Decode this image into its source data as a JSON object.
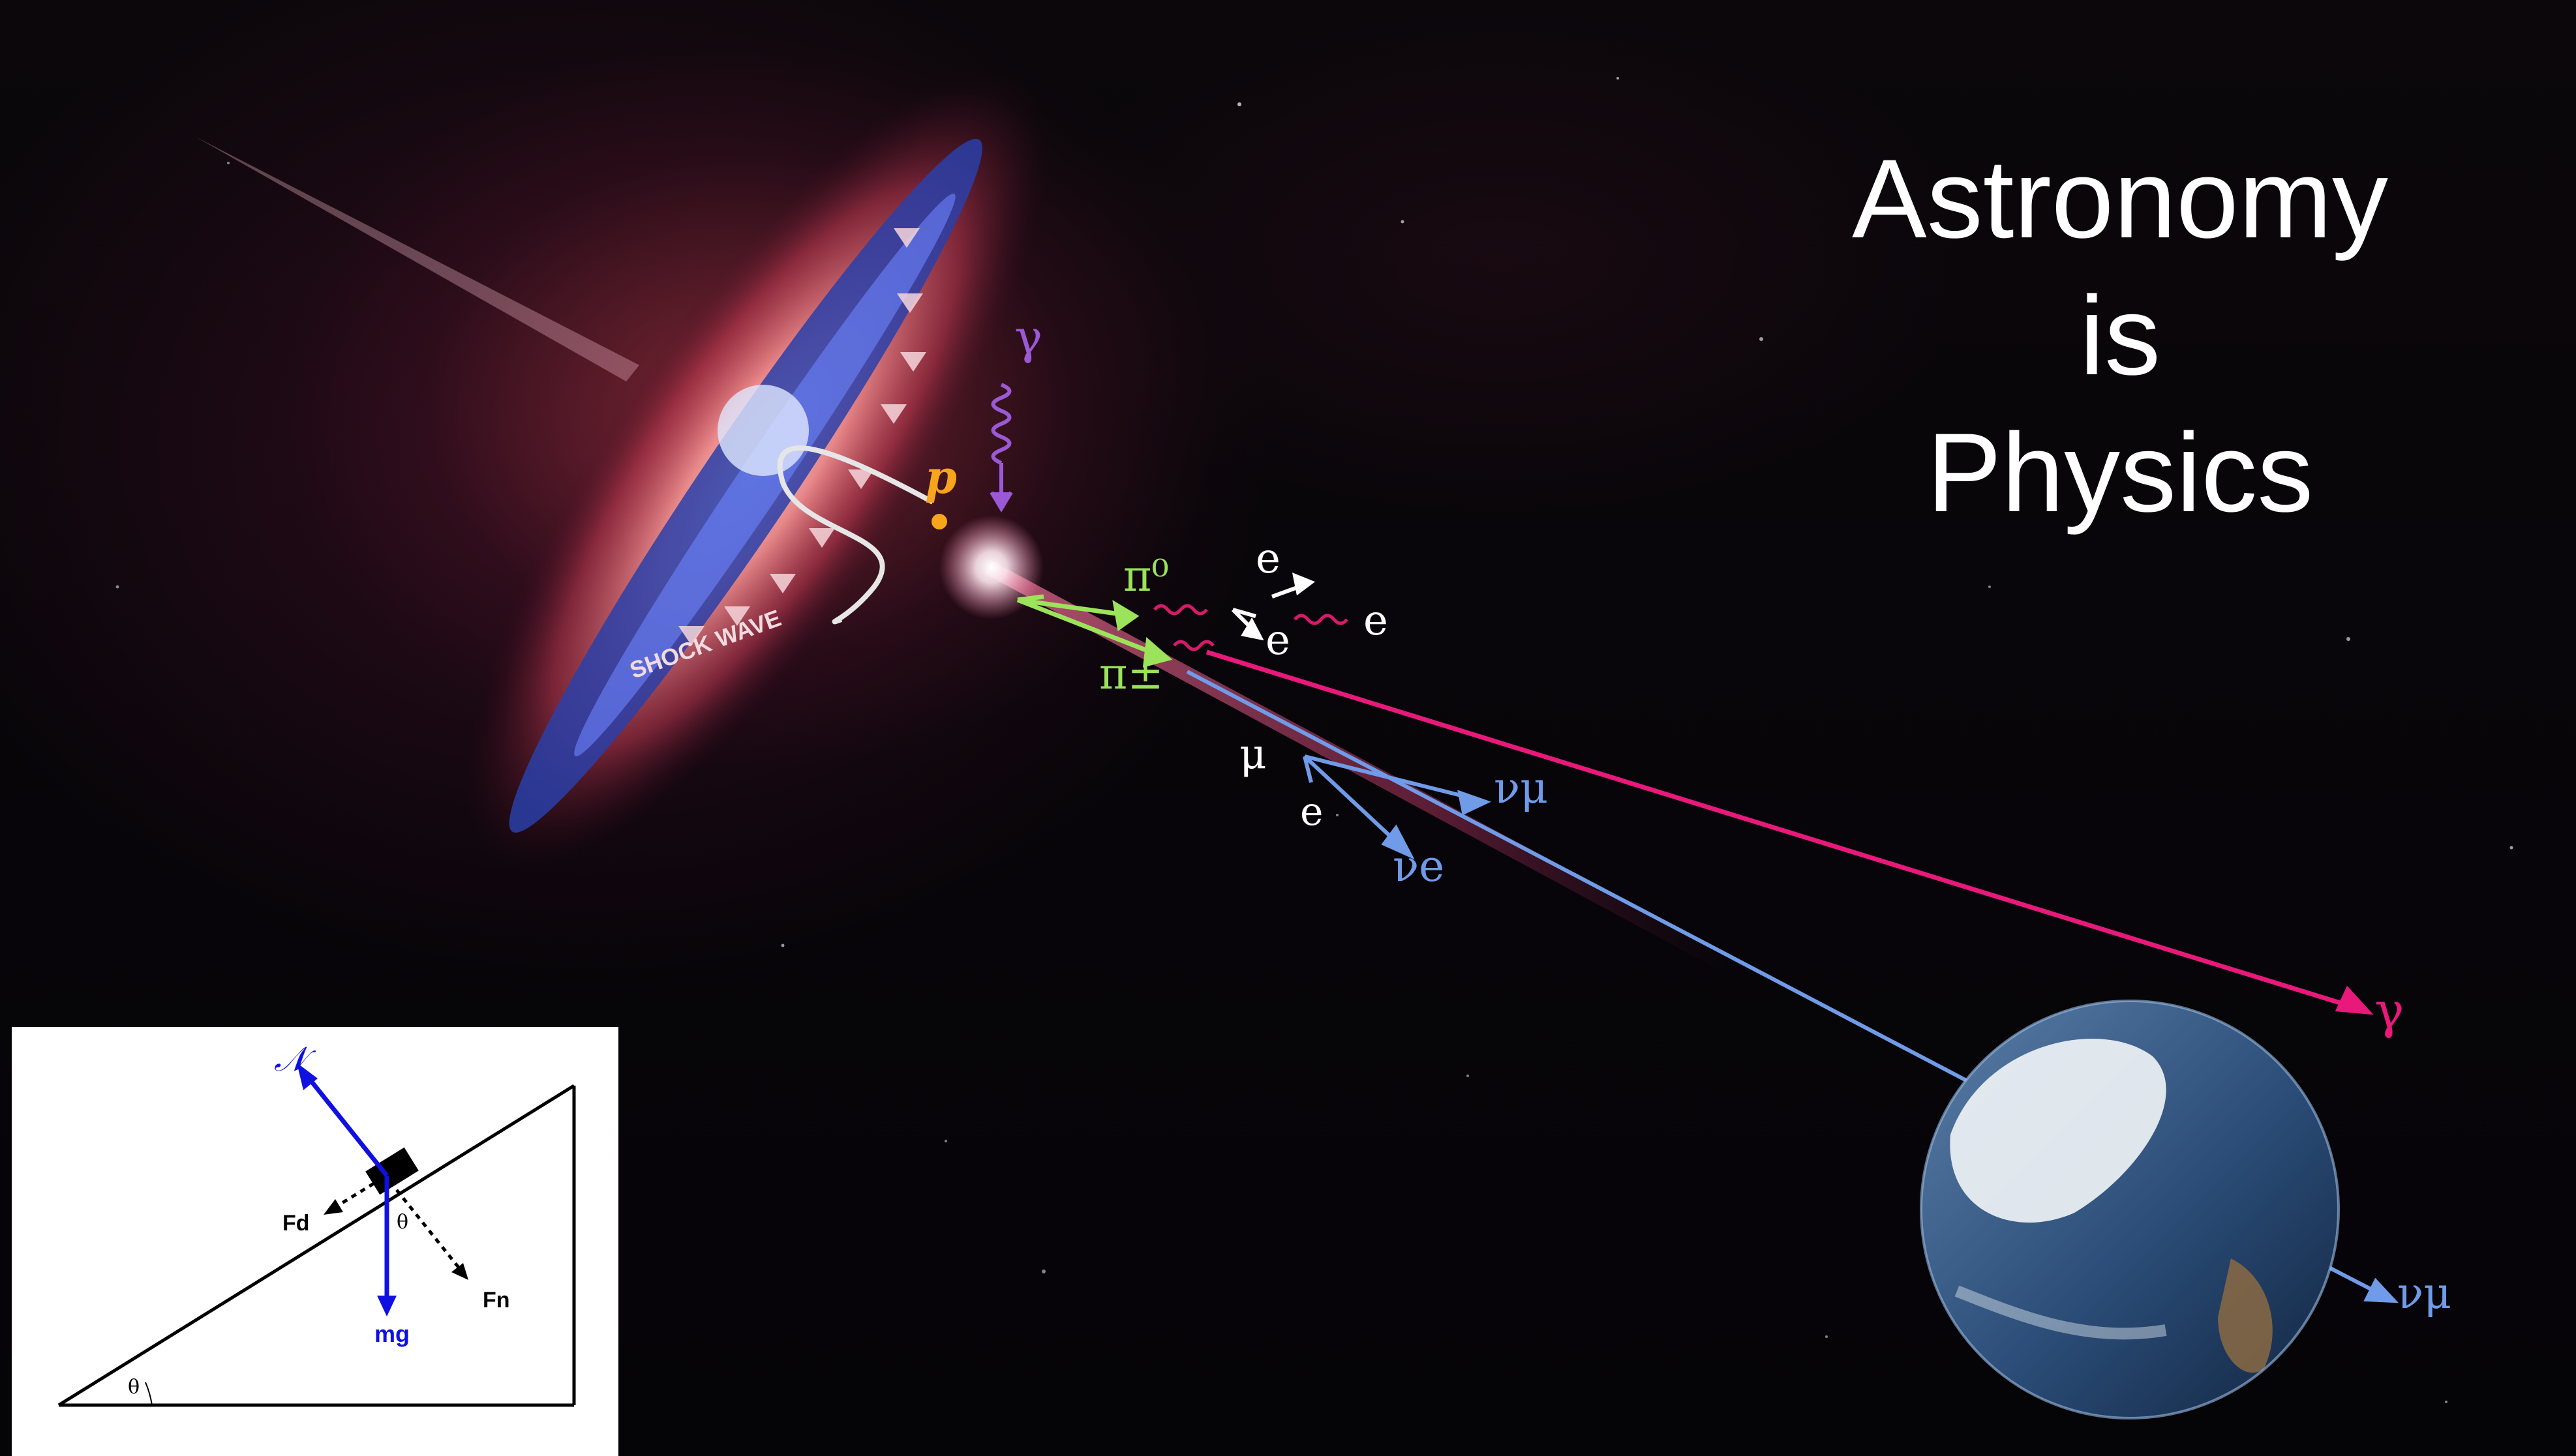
{
  "slide": {
    "title_lines": [
      "Astronomy",
      "is",
      "Physics"
    ]
  },
  "illustration": {
    "labels": {
      "gamma_in": "γ",
      "proton": "p",
      "shock_wave": "SHOCK WAVE",
      "pi_zero": "π⁰",
      "pi_charged": "π±",
      "e_upper": "e",
      "e_lower": "e",
      "e_right": "e",
      "mu": "μ",
      "e_muon_decay": "e",
      "nu_mu": "νμ",
      "nu_e": "νe",
      "gamma_out": "γ",
      "nu_mu_earth": "νμ"
    },
    "colors": {
      "gamma": "#e8197a",
      "proton": "#f6a51c",
      "pion": "#9be35a",
      "neutrino": "#6f9be8",
      "photon_in": "#9b59d6"
    }
  },
  "inset": {
    "labels": {
      "normal": "𝒩",
      "friction": "Fd",
      "angle_block": "θ",
      "normal_force": "Fn",
      "weight": "mg",
      "angle_base": "θ"
    },
    "colors": {
      "force": "#1010e0",
      "line": "#000000"
    }
  }
}
